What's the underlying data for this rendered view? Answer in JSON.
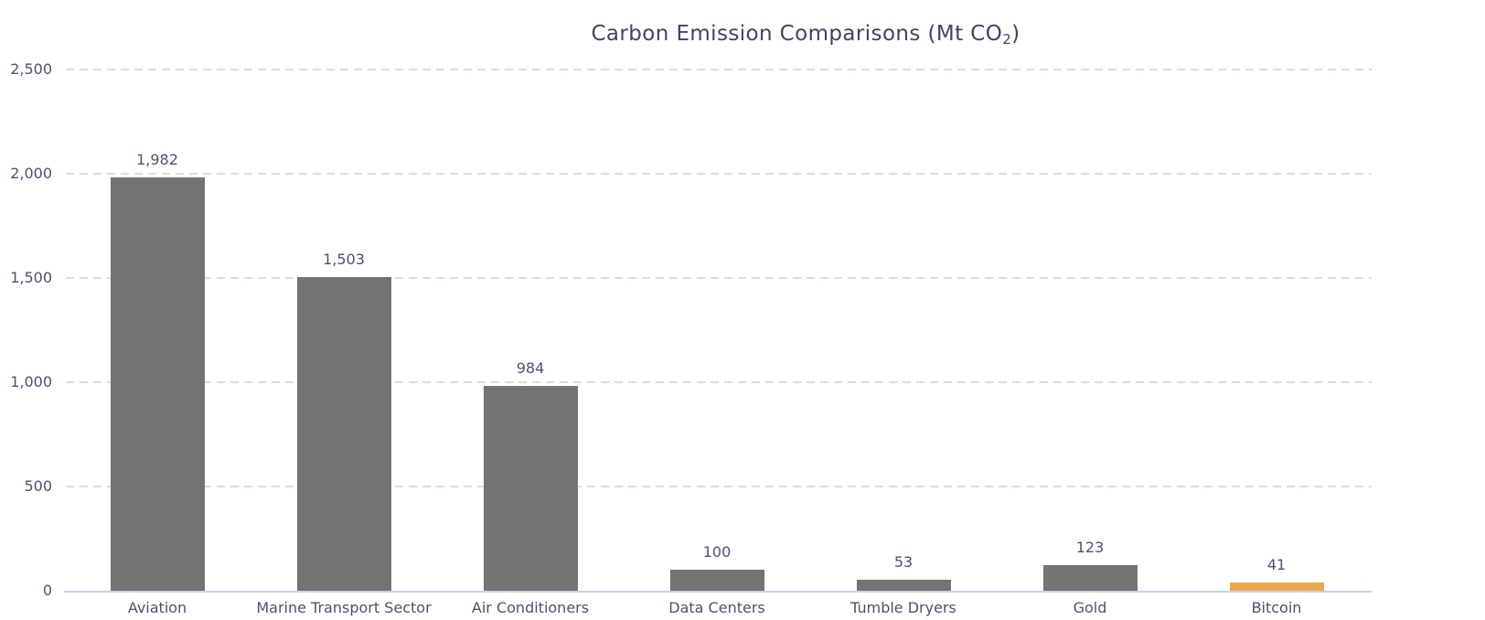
{
  "chart_data": {
    "type": "bar",
    "title_parts": {
      "prefix": "Carbon Emission Comparisons (Mt CO",
      "subscript": "2",
      "suffix": ")"
    },
    "title_plain": "Carbon Emission Comparisons (Mt CO2)",
    "categories": [
      "Aviation",
      "Marine Transport Sector",
      "Air Conditioners",
      "Data Centers",
      "Tumble Dryers",
      "Gold",
      "Bitcoin"
    ],
    "values": [
      1982,
      1503,
      984,
      100,
      53,
      123,
      41
    ],
    "value_labels": [
      "1,982",
      "1,503",
      "984",
      "100",
      "53",
      "123",
      "41"
    ],
    "xlabel": "",
    "ylabel": "",
    "ylim": [
      0,
      2500
    ],
    "y_ticks": [
      0,
      500,
      1000,
      1500,
      2000,
      2500
    ],
    "y_tick_labels": [
      "0",
      "500",
      "1,000",
      "1,500",
      "2,000",
      "2,500"
    ],
    "grid": "horizontal-dashed",
    "legend": "none",
    "highlight_category": "Bitcoin",
    "colors": {
      "bar_default": "#737373",
      "bar_highlight": "#eda84e",
      "title_text": "#3d4566",
      "axis_text": "#4a5273",
      "gridline": "#d6dcea",
      "axis_line": "#c9d3e3",
      "background": "#ffffff"
    }
  }
}
